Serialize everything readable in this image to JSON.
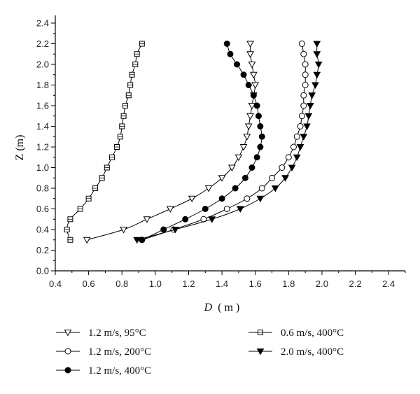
{
  "chart_data": {
    "type": "line",
    "xlabel_var": "D",
    "xlabel_unit": "( m )",
    "ylabel": "Z (m)",
    "xlim": [
      0.4,
      2.5
    ],
    "ylim": [
      0.0,
      2.4
    ],
    "xticks": [
      "0.4",
      "0.6",
      "0.8",
      "1.0",
      "1.2",
      "1.4",
      "1.6",
      "1.8",
      "2.0",
      "2.2",
      "2.4"
    ],
    "yticks": [
      "0.0",
      "0.2",
      "0.4",
      "0.6",
      "0.8",
      "1.0",
      "1.2",
      "1.4",
      "1.6",
      "1.8",
      "2.0",
      "2.2",
      "2.4"
    ],
    "grid": false,
    "legend_position": "bottom",
    "series": [
      {
        "name": "1.2 m/s, 95°C",
        "marker": "triangle-down-open",
        "x": [
          0.59,
          0.81,
          0.95,
          1.09,
          1.22,
          1.32,
          1.4,
          1.46,
          1.5,
          1.53,
          1.55,
          1.56,
          1.57,
          1.58,
          1.59,
          1.6,
          1.59,
          1.58,
          1.57,
          1.57
        ],
        "y": [
          0.3,
          0.4,
          0.5,
          0.6,
          0.7,
          0.8,
          0.9,
          1.0,
          1.1,
          1.2,
          1.3,
          1.4,
          1.5,
          1.6,
          1.7,
          1.8,
          1.9,
          2.0,
          2.1,
          2.2
        ]
      },
      {
        "name": "1.2 m/s, 200°C",
        "marker": "circle-open",
        "x": [
          0.92,
          1.11,
          1.29,
          1.43,
          1.55,
          1.64,
          1.7,
          1.76,
          1.8,
          1.83,
          1.85,
          1.87,
          1.88,
          1.89,
          1.89,
          1.9,
          1.9,
          1.9,
          1.89,
          1.88
        ],
        "y": [
          0.3,
          0.4,
          0.5,
          0.6,
          0.7,
          0.8,
          0.9,
          1.0,
          1.1,
          1.2,
          1.3,
          1.4,
          1.5,
          1.6,
          1.7,
          1.8,
          1.9,
          2.0,
          2.1,
          2.2
        ]
      },
      {
        "name": "1.2 m/s, 400°C",
        "marker": "circle-filled",
        "x": [
          0.92,
          1.05,
          1.18,
          1.3,
          1.4,
          1.48,
          1.54,
          1.58,
          1.61,
          1.63,
          1.64,
          1.63,
          1.62,
          1.61,
          1.59,
          1.56,
          1.53,
          1.49,
          1.45,
          1.43
        ],
        "y": [
          0.3,
          0.4,
          0.5,
          0.6,
          0.7,
          0.8,
          0.9,
          1.0,
          1.1,
          1.2,
          1.3,
          1.4,
          1.5,
          1.6,
          1.7,
          1.8,
          1.9,
          2.0,
          2.1,
          2.2
        ]
      },
      {
        "name": "0.6 m/s, 400°C",
        "marker": "square-open",
        "x": [
          0.49,
          0.47,
          0.49,
          0.55,
          0.6,
          0.64,
          0.68,
          0.71,
          0.74,
          0.77,
          0.79,
          0.8,
          0.81,
          0.82,
          0.84,
          0.85,
          0.86,
          0.88,
          0.89,
          0.92
        ],
        "y": [
          0.3,
          0.4,
          0.5,
          0.6,
          0.7,
          0.8,
          0.9,
          1.0,
          1.1,
          1.2,
          1.3,
          1.4,
          1.5,
          1.6,
          1.7,
          1.8,
          1.9,
          2.0,
          2.1,
          2.2
        ]
      },
      {
        "name": "2.0 m/s, 400°C",
        "marker": "triangle-down-filled",
        "x": [
          0.89,
          1.12,
          1.34,
          1.51,
          1.63,
          1.72,
          1.78,
          1.82,
          1.85,
          1.87,
          1.89,
          1.91,
          1.92,
          1.93,
          1.94,
          1.96,
          1.97,
          1.98,
          1.97,
          1.97
        ],
        "y": [
          0.3,
          0.4,
          0.5,
          0.6,
          0.7,
          0.8,
          0.9,
          1.0,
          1.1,
          1.2,
          1.3,
          1.4,
          1.5,
          1.6,
          1.7,
          1.8,
          1.9,
          2.0,
          2.1,
          2.2
        ]
      }
    ]
  }
}
